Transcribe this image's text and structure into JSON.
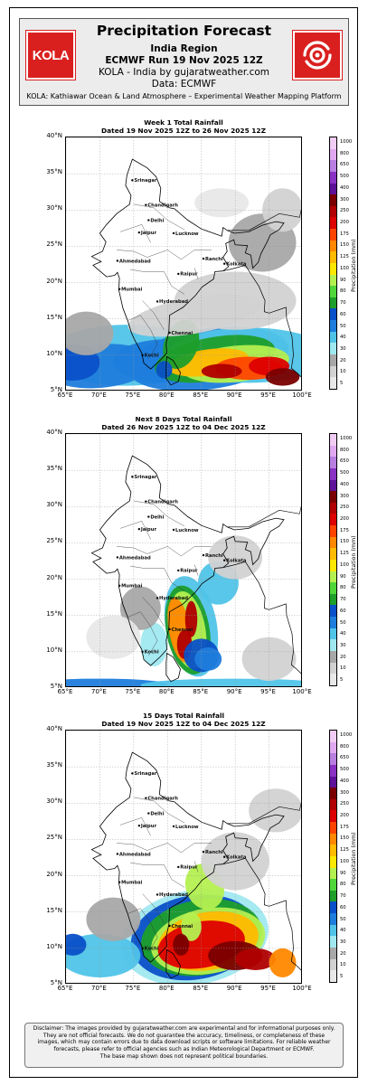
{
  "header": {
    "title": "Precipitation Forecast",
    "region": "India Region",
    "run": "ECMWF Run 19 Nov 2025 12Z",
    "site": "KOLA - India by gujaratweather.com",
    "data_source": "Data: ECMWF",
    "kola_full": "KOLA: Kathiawar Ocean & Land Atmosphere – Experimental Weather Mapping Platform",
    "logo_text": "KOLA",
    "brand_color": "#d9201f"
  },
  "axes": {
    "lat_labels": [
      "40°N",
      "35°N",
      "30°N",
      "25°N",
      "20°N",
      "15°N",
      "10°N",
      "5°N"
    ],
    "lon_labels": [
      "65°E",
      "70°E",
      "75°E",
      "80°E",
      "85°E",
      "90°E",
      "95°E",
      "100°E"
    ]
  },
  "colorbar": {
    "title": "Precipitation (mm)",
    "labels": [
      "1000",
      "800",
      "650",
      "500",
      "400",
      "300",
      "250",
      "200",
      "175",
      "150",
      "125",
      "100",
      "90",
      "80",
      "70",
      "60",
      "50",
      "40",
      "30",
      "20",
      "10",
      "5"
    ],
    "colors": [
      "#f0ccf4",
      "#e0a8ef",
      "#b87ee0",
      "#8a32c4",
      "#5e1199",
      "#7a0000",
      "#b00000",
      "#dd0000",
      "#ff4400",
      "#ff8800",
      "#ffbb00",
      "#ffe800",
      "#b4f050",
      "#50d63a",
      "#1e9e2a",
      "#0a50c8",
      "#1f7ddc",
      "#50c4e8",
      "#a0e8f0",
      "#a8a8a8",
      "#d2d2d2",
      "#e8e8e8"
    ]
  },
  "cities": [
    "Srinagar",
    "Chandigarh",
    "Delhi",
    "Jaipur",
    "Lucknow",
    "Ahmedabad",
    "Ranchi",
    "Kolkata",
    "Raipur",
    "Mumbai",
    "Hyderabad",
    "Chennai",
    "Kochi"
  ],
  "panels": [
    {
      "title": "Week 1 Total Rainfall",
      "subtitle": "Dated 19 Nov 2025 12Z to 26 Nov 2025 12Z"
    },
    {
      "title": "Next 8 Days Total Rainfall",
      "subtitle": "Dated 26 Nov 2025 12Z to 04 Dec 2025 12Z"
    },
    {
      "title": "15 Days Total Rainfall",
      "subtitle": "Dated 19 Nov 2025 12Z to 04 Dec 2025 12Z"
    }
  ],
  "disclaimer": [
    "Disclaimer: The images provided by gujaratweather.com are experimental and for informational purposes only.",
    "They are not official forecasts. We do not guarantee the accuracy, timeliness, or completeness of these",
    "images, which may contain errors due to data download scripts or software limitations. For reliable weather",
    "forecasts, please refer to official agencies such as Indian Meteorological Department or ECMWF.",
    "The base map shown does not represent political boundaries."
  ]
}
